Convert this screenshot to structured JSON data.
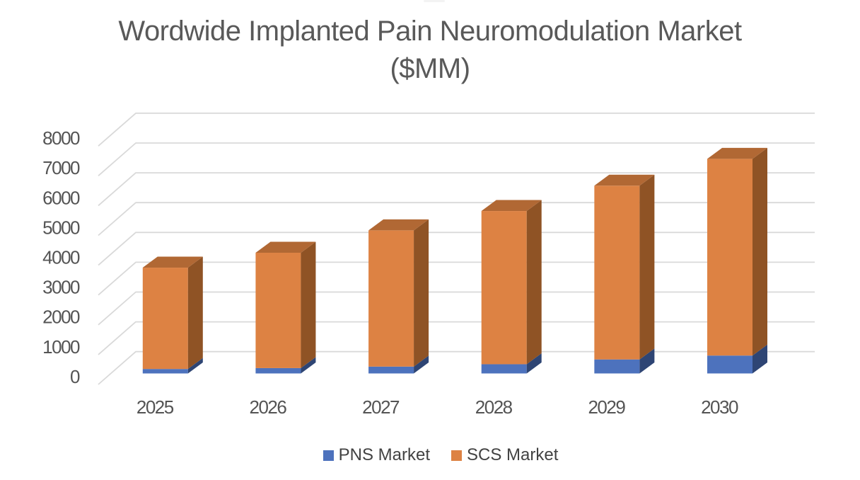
{
  "chart_data": {
    "type": "bar",
    "variant": "3d-stacked-column",
    "title": "Wordwide Implanted Pain Neuromodulation Market ($MM)",
    "title_lines": [
      "Wordwide Implanted Pain Neuromodulation Market",
      "($MM)"
    ],
    "categories": [
      "2025",
      "2026",
      "2027",
      "2028",
      "2029",
      "2030"
    ],
    "series": [
      {
        "name": "PNS Market",
        "values": [
          150,
          180,
          230,
          310,
          470,
          600
        ],
        "front_color": "#4D72BD",
        "side_color": "#2E4574",
        "top_color": "#3A5A8E"
      },
      {
        "name": "SCS Market",
        "values": [
          3400,
          3870,
          4570,
          5140,
          5830,
          6600
        ],
        "front_color": "#DD8243",
        "side_color": "#8F5325",
        "top_color": "#B16834"
      }
    ],
    "totals": [
      3550,
      4050,
      4800,
      5450,
      6300,
      7200
    ],
    "ylabel": "",
    "xlabel": "",
    "ylim": [
      0,
      8000
    ],
    "ytick_step": 1000,
    "yticks": [
      0,
      1000,
      2000,
      3000,
      4000,
      5000,
      6000,
      7000,
      8000
    ],
    "legend_position": "bottom",
    "gridlines": true,
    "gridline_color": "#D9D9D9",
    "text_color": "#545454",
    "title_color": "#595959"
  }
}
